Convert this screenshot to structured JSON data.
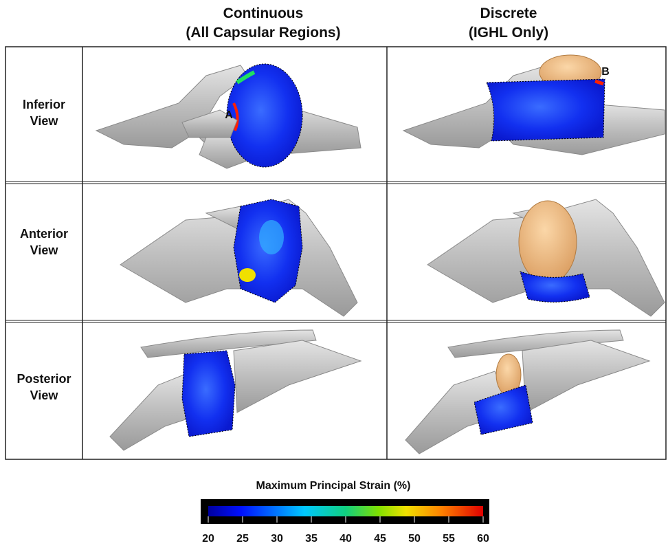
{
  "columns": [
    {
      "lines": [
        "Continuous",
        "(All Capsular Regions)"
      ]
    },
    {
      "lines": [
        "Discrete",
        "(IGHL Only)"
      ]
    }
  ],
  "rows": [
    {
      "lines": [
        "Inferior",
        "View"
      ]
    },
    {
      "lines": [
        "Anterior",
        "View"
      ]
    },
    {
      "lines": [
        "Posterior",
        "View"
      ]
    }
  ],
  "annotations": [
    "A",
    "B"
  ],
  "colorbar": {
    "title": "Maximum Principal Strain (%)",
    "range": [
      20,
      60
    ],
    "ticks": [
      20,
      25,
      30,
      35,
      40,
      45,
      50,
      55,
      60
    ]
  }
}
